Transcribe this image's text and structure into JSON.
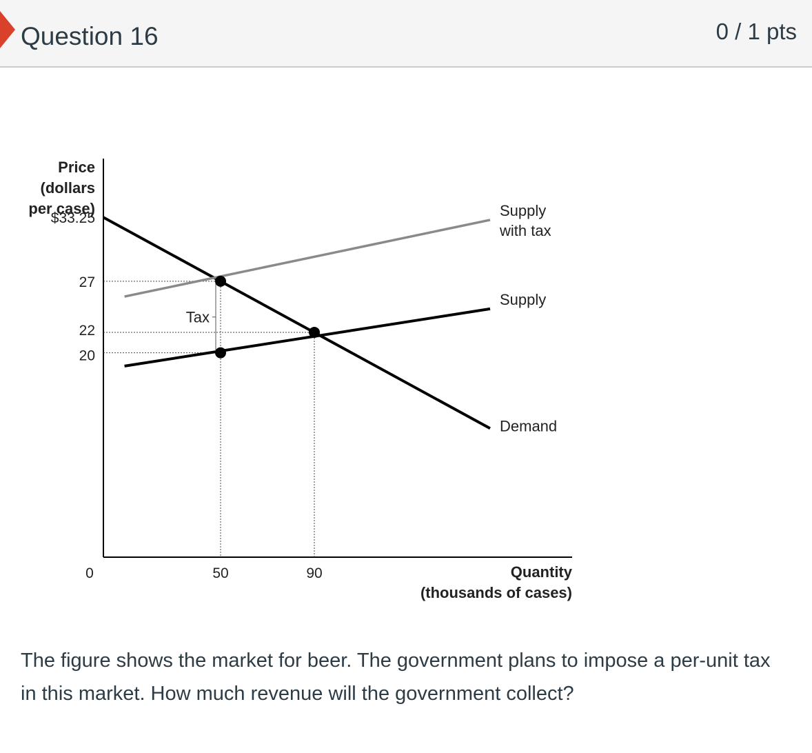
{
  "header": {
    "title": "Question 16",
    "points": "0 / 1 pts"
  },
  "question_text": "The figure shows the market for beer. The government plans to impose a per-unit tax in this market.  How much revenue will the government collect?",
  "chart_data": {
    "type": "line",
    "ylabel": [
      "Price",
      "(dollars",
      "per case)"
    ],
    "xlabel": [
      "Quantity",
      "(thousands of cases)"
    ],
    "x_ticks": [
      {
        "value": 0,
        "label": "0"
      },
      {
        "value": 50,
        "label": "50"
      },
      {
        "value": 90,
        "label": "90"
      }
    ],
    "y_ticks": [
      {
        "value": 33.25,
        "label": "$33.25"
      },
      {
        "value": 27,
        "label": "27"
      },
      {
        "value": 22,
        "label": "22"
      },
      {
        "value": 20,
        "label": "20"
      }
    ],
    "xlim": [
      0,
      200
    ],
    "ylim": [
      0,
      39
    ],
    "series": [
      {
        "name": "Demand",
        "points": [
          [
            0,
            33.25
          ],
          [
            165,
            12.6
          ]
        ],
        "color": "#000000"
      },
      {
        "name": "Supply",
        "points": [
          [
            9,
            18.7
          ],
          [
            165,
            24.3
          ]
        ],
        "color": "#000000"
      },
      {
        "name": "Supply with tax",
        "points": [
          [
            9,
            25.5
          ],
          [
            165,
            33.0
          ]
        ],
        "color": "#8a8a8a"
      }
    ],
    "series_labels": {
      "Demand": [
        "Demand"
      ],
      "Supply": [
        "Supply"
      ],
      "Supply with tax": [
        "Supply",
        "with tax"
      ]
    },
    "points": [
      {
        "x": 50,
        "y": 27
      },
      {
        "x": 50,
        "y": 20
      },
      {
        "x": 90,
        "y": 22
      }
    ],
    "annotations": [
      {
        "text": "Tax",
        "x": 50,
        "y_from": 20,
        "y_to": 27
      }
    ]
  },
  "colors": {
    "text": "#2d3b45",
    "header_bg": "#f5f5f5",
    "flag": "#d9412b",
    "tax_supply": "#8a8a8a"
  }
}
